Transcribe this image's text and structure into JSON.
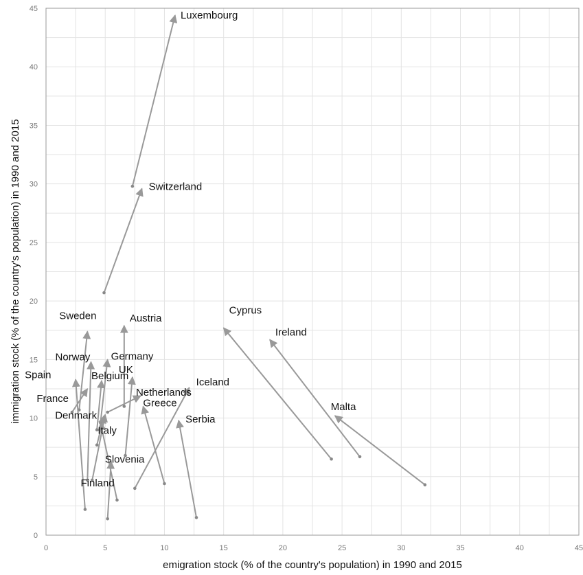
{
  "chart_data": {
    "type": "scatter",
    "title": "",
    "xlabel": "emigration stock  (% of the country's population) in 1990 and 2015",
    "ylabel": "immigration stock  (% of the country's population) in 1990 and 2015",
    "xlim": [
      0,
      45
    ],
    "ylim": [
      0,
      45
    ],
    "xticks": [
      0,
      5,
      10,
      15,
      20,
      25,
      30,
      35,
      40,
      45
    ],
    "yticks": [
      0,
      5,
      10,
      15,
      20,
      25,
      30,
      35,
      40,
      45
    ],
    "grid": true,
    "series": [
      {
        "label": "Luxembourg",
        "from": [
          7.3,
          29.8
        ],
        "to": [
          10.9,
          44.4
        ]
      },
      {
        "label": "Switzerland",
        "from": [
          4.9,
          20.7
        ],
        "to": [
          8.1,
          29.6
        ]
      },
      {
        "label": "Sweden",
        "from": [
          2.8,
          10.7
        ],
        "to": [
          3.5,
          17.4
        ]
      },
      {
        "label": "Austria",
        "from": [
          6.6,
          11.0
        ],
        "to": [
          6.6,
          17.9
        ]
      },
      {
        "label": "Norway",
        "from": [
          3.5,
          4.7
        ],
        "to": [
          3.8,
          14.8
        ]
      },
      {
        "label": "Germany",
        "from": [
          4.6,
          9.6
        ],
        "to": [
          5.2,
          15.0
        ]
      },
      {
        "label": "Spain",
        "from": [
          3.3,
          2.2
        ],
        "to": [
          2.5,
          13.3
        ]
      },
      {
        "label": "France",
        "from": [
          2.2,
          10.5
        ],
        "to": [
          3.5,
          12.5
        ]
      },
      {
        "label": "Belgium",
        "from": [
          4.3,
          9.0
        ],
        "to": [
          4.7,
          13.2
        ]
      },
      {
        "label": "UK",
        "from": [
          6.7,
          6.8
        ],
        "to": [
          7.3,
          13.5
        ]
      },
      {
        "label": "Netherlands",
        "from": [
          5.2,
          10.5
        ],
        "to": [
          8.0,
          11.9
        ]
      },
      {
        "label": "Greece",
        "from": [
          10.0,
          4.4
        ],
        "to": [
          8.2,
          11.0
        ]
      },
      {
        "label": "Iceland",
        "from": [
          7.5,
          4.0
        ],
        "to": [
          12.1,
          12.6
        ]
      },
      {
        "label": "Slovenia",
        "from": [
          5.2,
          1.4
        ],
        "to": [
          5.5,
          6.3
        ]
      },
      {
        "label": "Denmark",
        "from": [
          3.9,
          4.7
        ],
        "to": [
          5.0,
          10.3
        ]
      },
      {
        "label": "Italy",
        "from": [
          6.0,
          3.0
        ],
        "to": [
          4.6,
          9.6
        ]
      },
      {
        "label": "Serbia",
        "from": [
          12.7,
          1.5
        ],
        "to": [
          11.2,
          9.8
        ]
      },
      {
        "label": "Finland",
        "from": [
          4.3,
          7.7
        ],
        "to": [
          4.9,
          10.2
        ]
      },
      {
        "label": "Cyprus",
        "from": [
          24.1,
          6.5
        ],
        "to": [
          15.0,
          17.7
        ]
      },
      {
        "label": "Ireland",
        "from": [
          26.5,
          6.7
        ],
        "to": [
          18.9,
          16.7
        ]
      },
      {
        "label": "Malta",
        "from": [
          32.0,
          4.3
        ],
        "to": [
          24.4,
          10.2
        ]
      }
    ]
  }
}
